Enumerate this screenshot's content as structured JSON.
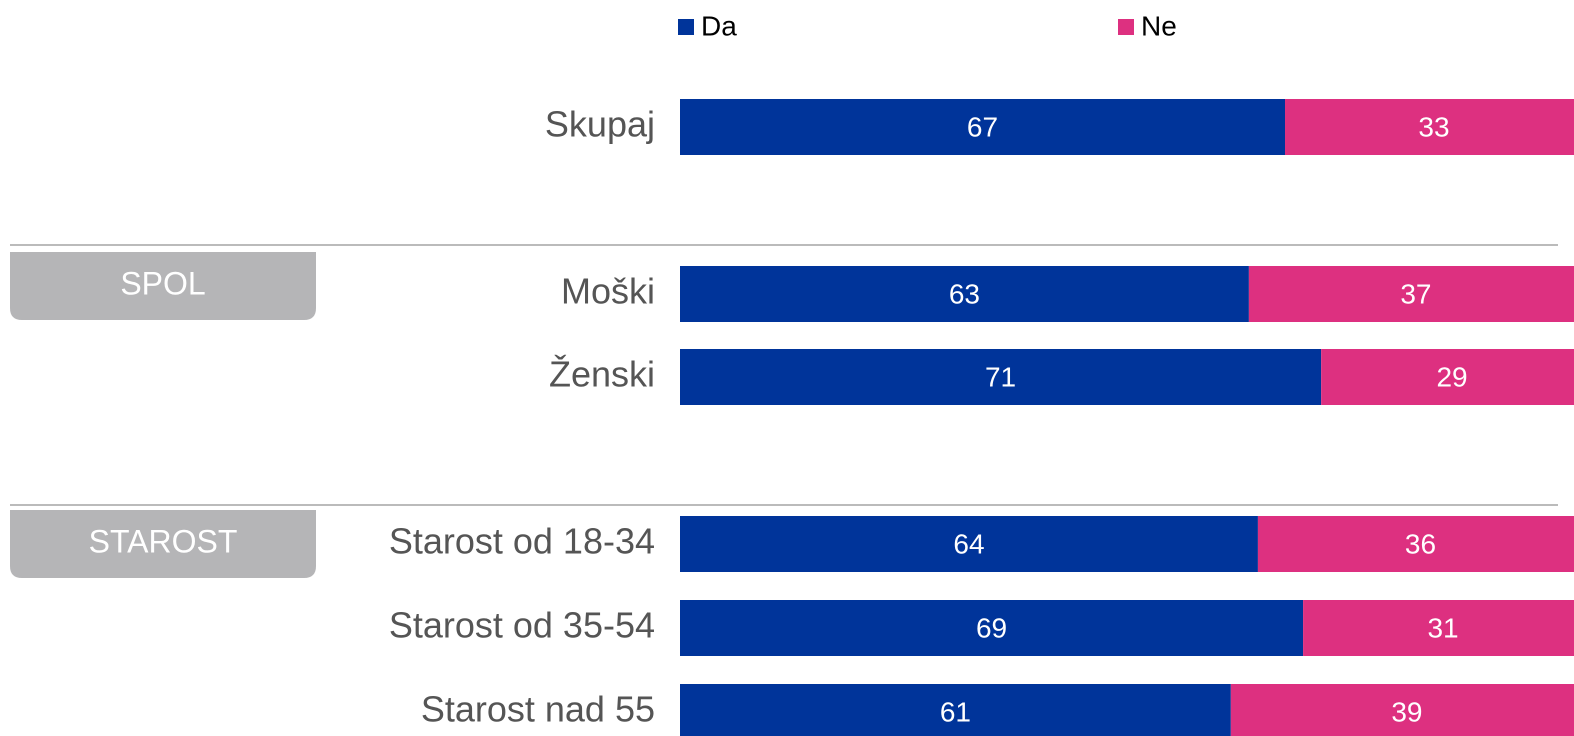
{
  "chart_data": {
    "type": "stacked-bar-horizontal",
    "categories": [
      "Skupaj",
      "Moški",
      "Ženski",
      "Starost od 18-34",
      "Starost od 35-54",
      "Starost nad 55"
    ],
    "groups": [
      "SPOL",
      "STAROST"
    ],
    "series": [
      {
        "name": "Da",
        "color": "#00349a",
        "values": [
          67,
          63,
          71,
          64,
          69,
          61
        ]
      },
      {
        "name": "Ne",
        "color": "#dd3080",
        "values": [
          33,
          37,
          29,
          36,
          31,
          39
        ]
      }
    ],
    "xlim": [
      0,
      100
    ]
  }
}
